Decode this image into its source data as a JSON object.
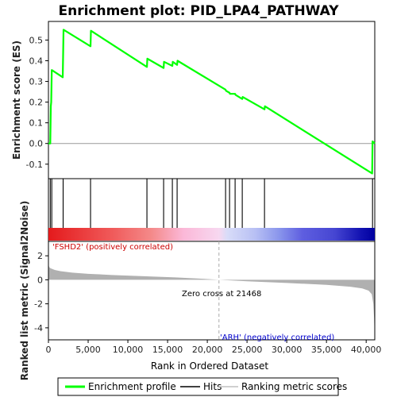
{
  "chart_data": {
    "type": "line",
    "title": "Enrichment plot: PID_LPA4_PATHWAY",
    "x_max": 41081,
    "es_panel": {
      "ylabel": "Enrichment score (ES)",
      "ylim": [
        -0.17,
        0.59
      ],
      "yticks": [
        -0.1,
        0.0,
        0.1,
        0.2,
        0.3,
        0.4,
        0.5
      ],
      "ytick_labels": [
        "-0.1",
        "0.0",
        "0.1",
        "0.2",
        "0.3",
        "0.4",
        "0.5"
      ],
      "series": [
        {
          "name": "Enrichment profile",
          "color": "#00ff00",
          "x": [
            0,
            230,
            300,
            350,
            420,
            1800,
            1850,
            1900,
            5300,
            5350,
            12400,
            12450,
            14500,
            14550,
            15600,
            15650,
            16200,
            16250,
            22300,
            22350,
            22800,
            22850,
            23500,
            23550,
            24400,
            24450,
            27200,
            27250,
            40750,
            40800,
            41081
          ],
          "y": [
            0.0,
            0.0,
            0.18,
            0.2,
            0.355,
            0.32,
            0.43,
            0.55,
            0.47,
            0.545,
            0.37,
            0.41,
            0.365,
            0.395,
            0.375,
            0.395,
            0.38,
            0.4,
            0.26,
            0.255,
            0.245,
            0.24,
            0.24,
            0.235,
            0.215,
            0.225,
            0.165,
            0.18,
            -0.145,
            0.01,
            0.0
          ]
        }
      ]
    },
    "hits": [
      230,
      420,
      1850,
      5300,
      12400,
      14500,
      15600,
      16200,
      22300,
      22800,
      23500,
      24400,
      27200,
      40800
    ],
    "metric_panel": {
      "ylabel": "Ranked list metric (Signal2Noise)",
      "ylim": [
        -5.0,
        3.2
      ],
      "yticks": [
        -4,
        -2,
        0,
        2
      ],
      "ytick_labels": [
        "-4",
        "-2",
        "0",
        "2"
      ],
      "x": [
        0,
        100,
        300,
        800,
        1500,
        3000,
        5000,
        8000,
        12000,
        16000,
        19000,
        21468,
        25000,
        30000,
        35000,
        38000,
        39500,
        40300,
        40700,
        40900,
        41000,
        41081
      ],
      "y": [
        1.3,
        1.05,
        0.95,
        0.82,
        0.72,
        0.6,
        0.5,
        0.4,
        0.3,
        0.2,
        0.1,
        0.0,
        -0.12,
        -0.26,
        -0.42,
        -0.58,
        -0.72,
        -0.9,
        -1.2,
        -2.0,
        -3.2,
        -4.9
      ]
    },
    "zero_cross_label": "Zero cross at 21468",
    "pos_label": "'FSHD2' (positively correlated)",
    "neg_label": "'ARH' (negatively correlated)",
    "xlabel": "Rank in Ordered Dataset",
    "xticks": [
      0,
      5000,
      10000,
      15000,
      20000,
      25000,
      30000,
      35000,
      40000
    ],
    "xtick_labels": [
      "0",
      "5,000",
      "10,000",
      "15,000",
      "20,000",
      "25,000",
      "30,000",
      "35,000",
      "40,000"
    ],
    "zero_cross_x": 21468,
    "heat_stops": [
      [
        0,
        "#e41a1c"
      ],
      [
        8000,
        "#f05a5a"
      ],
      [
        13000,
        "#f48a8a"
      ],
      [
        17000,
        "#fbb8d8"
      ],
      [
        21468,
        "#f7d8f0"
      ],
      [
        22500,
        "#d8dcf8"
      ],
      [
        26000,
        "#b8c0f4"
      ],
      [
        29000,
        "#8a96ec"
      ],
      [
        32000,
        "#5e5ee0"
      ],
      [
        36000,
        "#4646d2"
      ],
      [
        39500,
        "#1010b0"
      ],
      [
        41081,
        "#0000a0"
      ]
    ],
    "legend": [
      {
        "name": "Enrichment profile",
        "color": "#00ff00"
      },
      {
        "name": "Hits",
        "color": "#000000"
      },
      {
        "name": "Ranking metric scores",
        "color": "#c0c0c0"
      }
    ],
    "colors": {
      "pos_label": "#cc0000",
      "neg_label": "#0000cc",
      "metric_fill": "#b0b0b0",
      "zero_line": "#999999"
    }
  }
}
